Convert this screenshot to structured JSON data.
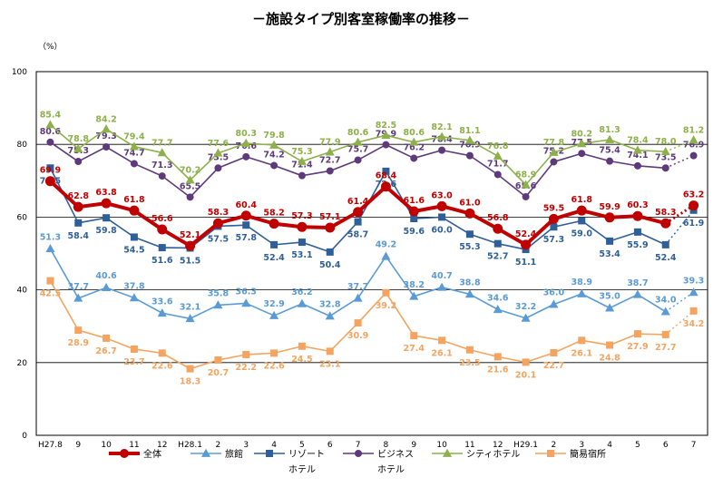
{
  "chart_data": {
    "type": "line",
    "title": "－施設タイプ別客室稼働率の推移－",
    "unit_label": "（%）",
    "ylim": [
      0,
      100
    ],
    "yticks": [
      0,
      20,
      40,
      60,
      80,
      100
    ],
    "grid": true,
    "legend_position": "bottom",
    "categories": [
      "H27.8",
      "9",
      "10",
      "11",
      "12",
      "H28.1",
      "2",
      "3",
      "4",
      "5",
      "6",
      "7",
      "8",
      "9",
      "10",
      "11",
      "12",
      "H29.1",
      "2",
      "3",
      "4",
      "5",
      "6",
      "7"
    ],
    "series": [
      {
        "name": "全体",
        "color": "#c00000",
        "marker": "circle",
        "bold": true,
        "values": [
          69.9,
          62.8,
          63.8,
          61.8,
          56.6,
          52.1,
          58.3,
          60.4,
          58.2,
          57.3,
          57.1,
          61.4,
          68.4,
          61.6,
          63.0,
          61.0,
          56.8,
          52.4,
          59.5,
          61.8,
          59.9,
          60.3,
          58.3,
          63.2
        ]
      },
      {
        "name": "旅館",
        "color": "#5b9bd5",
        "marker": "triangle",
        "values": [
          51.3,
          37.7,
          40.6,
          37.8,
          33.6,
          32.1,
          35.8,
          36.3,
          32.9,
          36.2,
          32.8,
          37.7,
          49.2,
          38.2,
          40.7,
          38.8,
          34.6,
          32.2,
          36.0,
          38.9,
          35.0,
          38.7,
          34.0,
          39.3
        ]
      },
      {
        "name": "リゾートホテル",
        "legend_lines": [
          "リゾート",
          "ホテル"
        ],
        "color": "#2e5f99",
        "marker": "square",
        "values": [
          73.5,
          58.4,
          59.8,
          54.5,
          51.6,
          51.5,
          57.5,
          57.8,
          52.4,
          53.1,
          50.4,
          58.7,
          72.6,
          59.6,
          60.0,
          55.3,
          52.7,
          51.1,
          57.3,
          59.0,
          53.4,
          55.9,
          52.4,
          61.9
        ]
      },
      {
        "name": "ビジネスホテル",
        "legend_lines": [
          "ビジネス",
          "ホテル"
        ],
        "color": "#5e3a7a",
        "marker": "circle",
        "values": [
          80.6,
          75.3,
          79.3,
          74.7,
          71.3,
          65.5,
          73.5,
          76.6,
          74.2,
          71.4,
          72.7,
          75.7,
          79.9,
          76.2,
          78.4,
          76.9,
          71.7,
          65.6,
          75.2,
          77.5,
          75.4,
          74.1,
          73.5,
          76.9
        ]
      },
      {
        "name": "シティホテル",
        "color": "#8db04a",
        "marker": "triangle",
        "values": [
          85.4,
          78.8,
          84.2,
          79.4,
          77.7,
          70.2,
          77.6,
          80.3,
          79.8,
          75.3,
          77.9,
          80.6,
          82.5,
          80.6,
          82.1,
          81.1,
          76.8,
          68.9,
          77.8,
          80.2,
          81.3,
          78.4,
          78.0,
          81.2
        ]
      },
      {
        "name": "簡易宿所",
        "color": "#f4a460",
        "marker": "square",
        "values": [
          42.5,
          28.9,
          26.7,
          23.7,
          22.6,
          18.3,
          20.7,
          22.2,
          22.6,
          24.5,
          23.1,
          30.9,
          39.2,
          27.4,
          26.1,
          23.5,
          21.6,
          20.1,
          22.7,
          26.1,
          24.8,
          27.9,
          27.7,
          34.2
        ]
      }
    ]
  }
}
